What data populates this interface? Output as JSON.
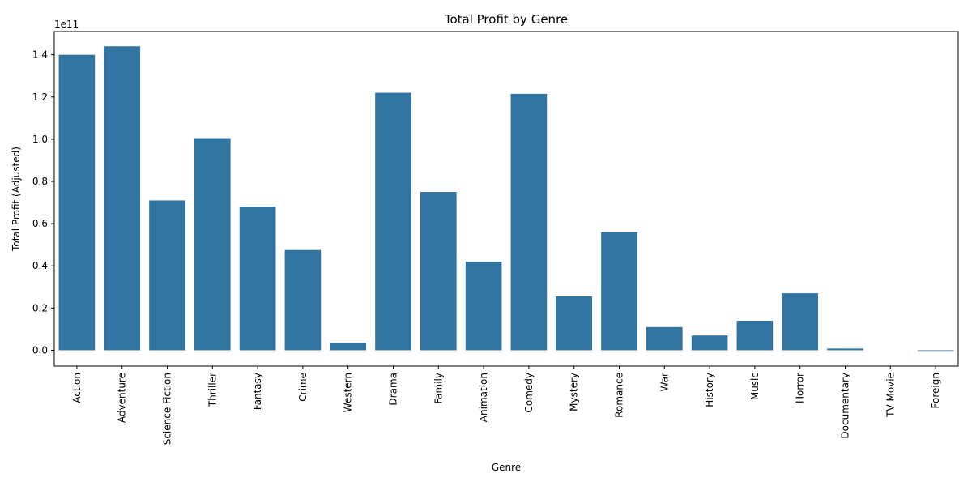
{
  "chart_data": {
    "type": "bar",
    "title": "Total Profit by Genre",
    "xlabel": "Genre",
    "ylabel": "Total Profit (Adjusted)",
    "scale_label": "1e11",
    "categories": [
      "Action",
      "Adventure",
      "Science Fiction",
      "Thriller",
      "Fantasy",
      "Crime",
      "Western",
      "Drama",
      "Family",
      "Animation",
      "Comedy",
      "Mystery",
      "Romance",
      "War",
      "History",
      "Music",
      "Horror",
      "Documentary",
      "TV Movie",
      "Foreign"
    ],
    "values": [
      1.4,
      1.44,
      0.71,
      1.005,
      0.68,
      0.475,
      0.035,
      1.22,
      0.75,
      0.42,
      1.215,
      0.255,
      0.56,
      0.11,
      0.07,
      0.14,
      0.27,
      0.008,
      0.0,
      -0.003
    ],
    "ylim": [
      -0.075,
      1.51
    ],
    "yticks": [
      0.0,
      0.2,
      0.4,
      0.6,
      0.8,
      1.0,
      1.2,
      1.4
    ],
    "ytick_labels": [
      "0.0",
      "0.2",
      "0.4",
      "0.6",
      "0.8",
      "1.0",
      "1.2",
      "1.4"
    ],
    "bar_color": "#3274a1",
    "grid": false
  }
}
